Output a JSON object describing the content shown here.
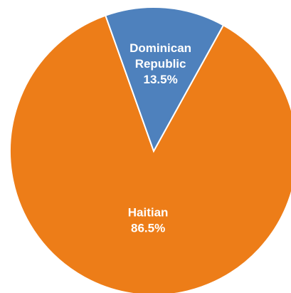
{
  "chart_data": {
    "type": "pie",
    "title": "",
    "slices": [
      {
        "label_lines": [
          "Haitian",
          "86.5%"
        ],
        "value": 86.5,
        "color": "#ED7D18"
      },
      {
        "label_lines": [
          "Dominican",
          "Republic",
          "13.5%"
        ],
        "value": 13.5,
        "color": "#4E81BD"
      }
    ],
    "start_angle_deg": -61,
    "direction": "clockwise",
    "slice_border_color": "#ffffff"
  }
}
